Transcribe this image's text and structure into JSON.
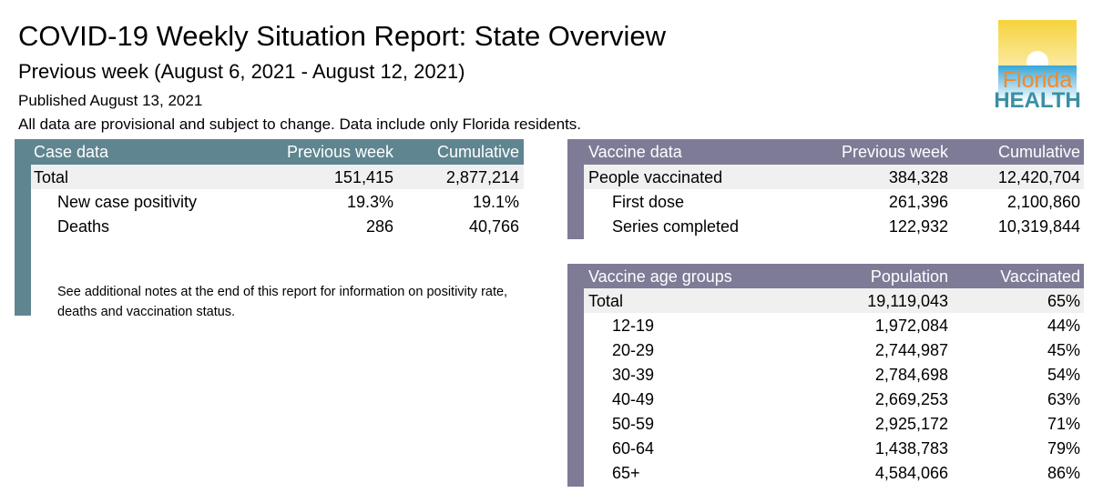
{
  "header": {
    "title": "COVID-19 Weekly Situation Report: State Overview",
    "subtitle": "Previous week (August 6, 2021 - August 12, 2021)",
    "published": "Published August 13, 2021",
    "disclaimer": "All data are provisional and subject to change. Data include only Florida residents."
  },
  "logo": {
    "line1": "Florida",
    "line2": "HEALTH"
  },
  "colors": {
    "case": "#5f8590",
    "vaccine": "#7e7b97"
  },
  "case": {
    "headers": [
      "Case data",
      "Previous week",
      "Cumulative"
    ],
    "rows": [
      [
        "Total",
        "151,415",
        "2,877,214"
      ],
      [
        "New case positivity",
        "19.3%",
        "19.1%"
      ],
      [
        "Deaths",
        "286",
        "40,766"
      ]
    ],
    "note": "See additional notes at the end of this report for information on positivity rate, deaths and vaccination status."
  },
  "vaccine": {
    "headers": [
      "Vaccine data",
      "Previous week",
      "Cumulative"
    ],
    "rows": [
      [
        "People vaccinated",
        "384,328",
        "12,420,704"
      ],
      [
        "First dose",
        "261,396",
        "2,100,860"
      ],
      [
        "Series completed",
        "122,932",
        "10,319,844"
      ]
    ]
  },
  "age": {
    "headers": [
      "Vaccine age groups",
      "Population",
      "Vaccinated"
    ],
    "rows": [
      [
        "Total",
        "19,119,043",
        "65%"
      ],
      [
        "12-19",
        "1,972,084",
        "44%"
      ],
      [
        "20-29",
        "2,744,987",
        "45%"
      ],
      [
        "30-39",
        "2,784,698",
        "54%"
      ],
      [
        "40-49",
        "2,669,253",
        "63%"
      ],
      [
        "50-59",
        "2,925,172",
        "71%"
      ],
      [
        "60-64",
        "1,438,783",
        "79%"
      ],
      [
        "65+",
        "4,584,066",
        "86%"
      ]
    ]
  }
}
